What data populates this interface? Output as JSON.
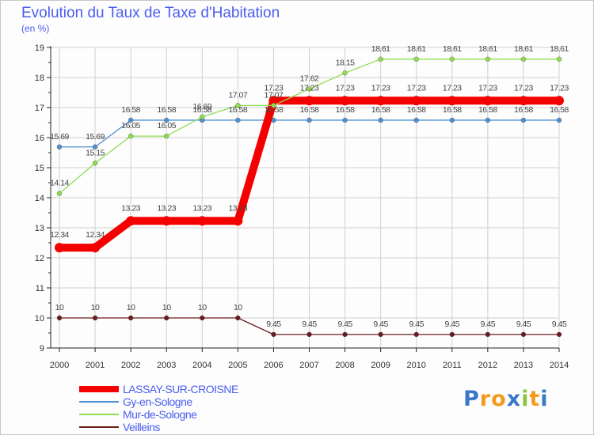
{
  "title": "Evolution du Taux de Taxe d'Habitation",
  "unit_label": "(en %)",
  "logo_text": "Proxiti",
  "colors": {
    "lassay": "#f50000",
    "gy": "#4f8fcf",
    "mur": "#8edd50",
    "veilleins": "#6b1b1b",
    "grid": "#d0d0d0",
    "axis": "#222222",
    "text": "#4a5ef0"
  },
  "chart_data": {
    "type": "line",
    "title": "Evolution du Taux de Taxe d'Habitation",
    "ylabel": "(en %)",
    "xlabel": "",
    "ylim": [
      9,
      19
    ],
    "yticks": [
      9,
      10,
      11,
      12,
      13,
      14,
      15,
      16,
      17,
      18,
      19
    ],
    "x": [
      "2000",
      "2001",
      "2002",
      "2003",
      "2004",
      "2005",
      "2006",
      "2007",
      "2008",
      "2009",
      "2010",
      "2011",
      "2012",
      "2013",
      "2014"
    ],
    "series": [
      {
        "name": "LASSAY-SUR-CROISNE",
        "key": "lassay",
        "values": [
          12.34,
          12.34,
          13.23,
          13.23,
          13.23,
          13.23,
          17.23,
          17.23,
          17.23,
          17.23,
          17.23,
          17.23,
          17.23,
          17.23,
          17.23
        ],
        "labels": [
          "12.34",
          "12.34",
          "13.23",
          "13.23",
          "13.23",
          "13.23",
          "17.23",
          "17.23",
          "17.23",
          "17.23",
          "17.23",
          "17.23",
          "17.23",
          "17.23",
          "17.23"
        ]
      },
      {
        "name": "Gy-en-Sologne",
        "key": "gy",
        "values": [
          15.69,
          15.69,
          16.58,
          16.58,
          16.58,
          16.58,
          16.58,
          16.58,
          16.58,
          16.58,
          16.58,
          16.58,
          16.58,
          16.58,
          16.58
        ],
        "labels": [
          "15.69",
          "15.69",
          "16.58",
          "16.58",
          "16.58",
          "16.58",
          "16.58",
          "16.58",
          "16.58",
          "16.58",
          "16.58",
          "16.58",
          "16.58",
          "16.58",
          "16.58"
        ]
      },
      {
        "name": "Mur-de-Sologne",
        "key": "mur",
        "values": [
          14.14,
          15.15,
          16.05,
          16.05,
          16.69,
          17.07,
          17.07,
          17.62,
          18.15,
          18.61,
          18.61,
          18.61,
          18.61,
          18.61,
          18.61
        ],
        "labels": [
          "14.14",
          "15.15",
          "16.05",
          "16.05",
          "16.69",
          "17.07",
          "17.07",
          "17.62",
          "18.15",
          "18.61",
          "18.61",
          "18.61",
          "18.61",
          "18.61",
          "18.61"
        ]
      },
      {
        "name": "Veilleins",
        "key": "veilleins",
        "values": [
          10,
          10,
          10,
          10,
          10,
          10,
          9.45,
          9.45,
          9.45,
          9.45,
          9.45,
          9.45,
          9.45,
          9.45,
          9.45
        ],
        "labels": [
          "10",
          "10",
          "10",
          "10",
          "10",
          "10",
          "9.45",
          "9.45",
          "9.45",
          "9.45",
          "9.45",
          "9.45",
          "9.45",
          "9.45",
          "9.45"
        ]
      }
    ],
    "legend_position": "bottom-left"
  }
}
